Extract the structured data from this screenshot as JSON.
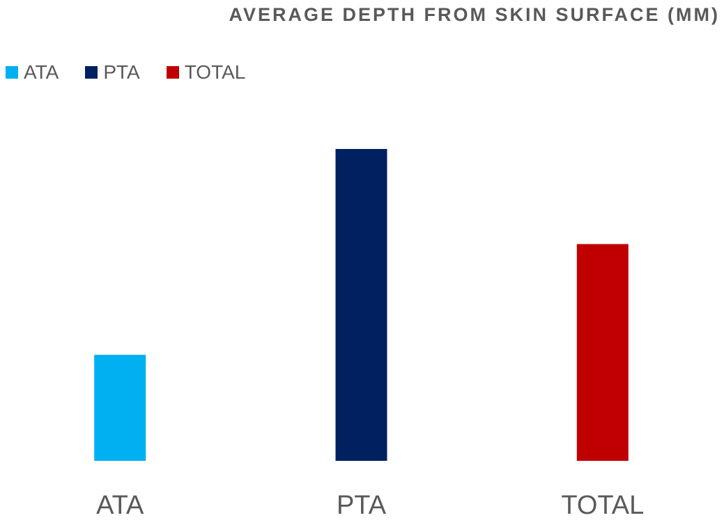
{
  "chart_data": {
    "type": "bar",
    "title": "AVERAGE DEPTH FROM SKIN SURFACE (MM)",
    "xlabel": "",
    "ylabel": "",
    "categories": [
      "ATA",
      "PTA",
      "TOTAL"
    ],
    "values": [
      6.8,
      20.0,
      13.9
    ],
    "colors": [
      "#00b0f0",
      "#002060",
      "#c00000"
    ],
    "legend": {
      "placement": "top-left",
      "entries": [
        "ATA",
        "PTA",
        "TOTAL"
      ]
    },
    "ylim": [
      0,
      22
    ],
    "grid": false,
    "y_axis_visible": false
  }
}
